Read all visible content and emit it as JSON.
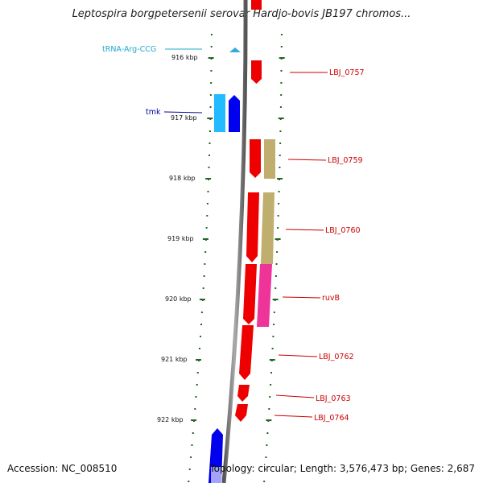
{
  "header": {
    "title": "Leptospira borgpetersenii serovar Hardjo-bovis JB197 chromos..."
  },
  "footer": {
    "accession": "Accession: NC_008510",
    "topology": "Topology: circular; Length: 3,576,473 bp; Genes: 2,687"
  },
  "colors": {
    "red_gene": "#ee0000",
    "blue_gene": "#0000ee",
    "cyan_gene": "#00aaff",
    "trna": "#33aadd",
    "olive_gene": "#bfae6e",
    "pink_gene": "#ee3399",
    "backbone": "#888888",
    "tick": "#226622",
    "label_red": "#cc0000",
    "label_navy": "#000099",
    "label_cyan": "#22aacc"
  },
  "axis": {
    "ticks": [
      {
        "label": "916 kbp"
      },
      {
        "label": "917 kbp"
      },
      {
        "label": "918 kbp"
      },
      {
        "label": "919 kbp"
      },
      {
        "label": "920 kbp"
      },
      {
        "label": "921 kbp"
      },
      {
        "label": "922 kbp"
      }
    ]
  },
  "labels": [
    {
      "text": "tRNA-Arg-CCG",
      "color": "label_cyan"
    },
    {
      "text": "LBJ_0757",
      "color": "label_red"
    },
    {
      "text": "tmk",
      "color": "label_navy"
    },
    {
      "text": "LBJ_0759",
      "color": "label_red"
    },
    {
      "text": "LBJ_0760",
      "color": "label_red"
    },
    {
      "text": "ruvB",
      "color": "label_red"
    },
    {
      "text": "LBJ_0762",
      "color": "label_red"
    },
    {
      "text": "LBJ_0763",
      "color": "label_red"
    },
    {
      "text": "LBJ_0764",
      "color": "label_red"
    }
  ]
}
